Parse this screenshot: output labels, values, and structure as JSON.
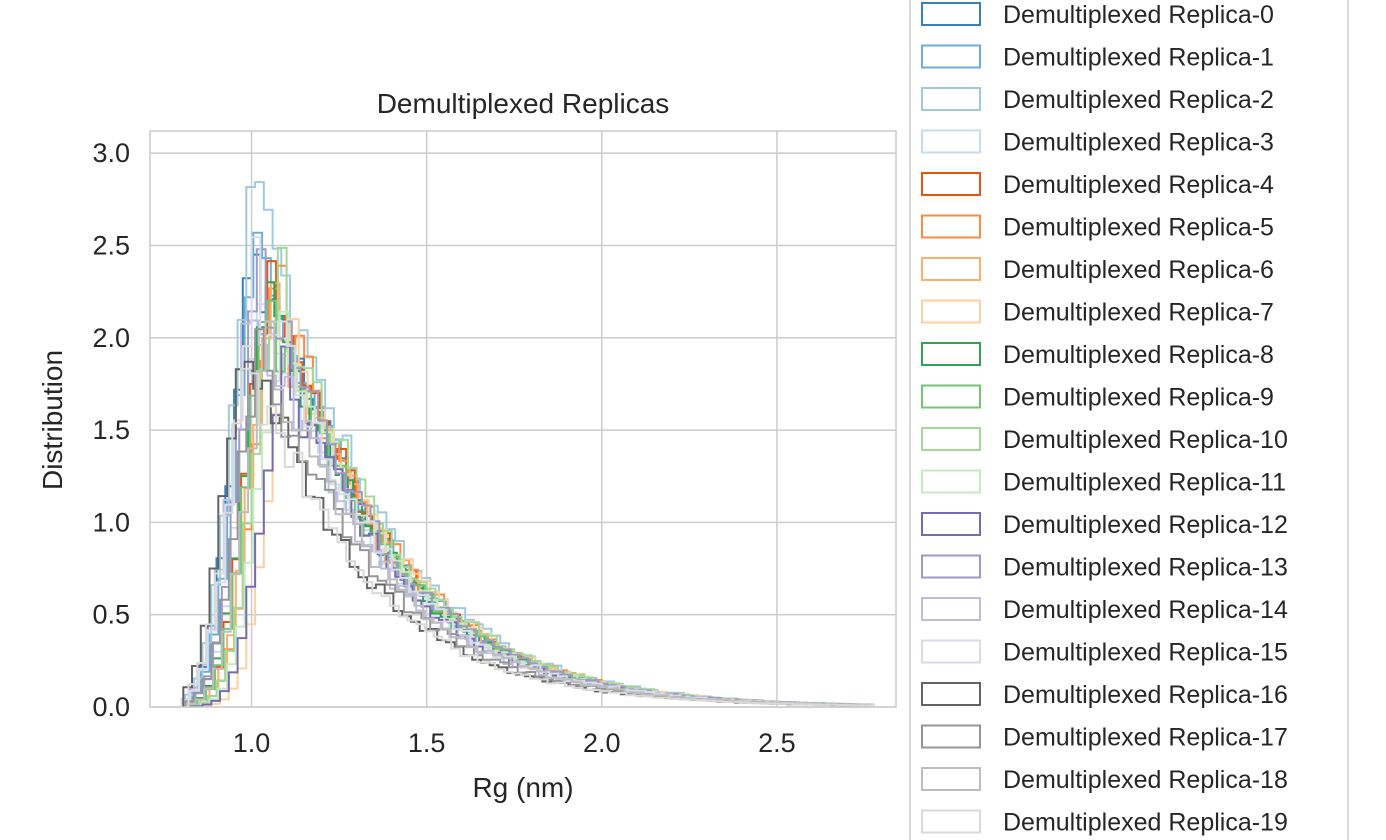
{
  "chart_data": {
    "type": "histogram-step",
    "title": "Demultiplexed Replicas",
    "xlabel": "Rg (nm)",
    "ylabel": "Distribution",
    "xlim": [
      0.71,
      2.84
    ],
    "ylim": [
      0.0,
      3.12
    ],
    "xticks": [
      1.0,
      1.5,
      2.0,
      2.5
    ],
    "xtick_labels": [
      "1.0",
      "1.5",
      "2.0",
      "2.5"
    ],
    "yticks": [
      0.0,
      0.5,
      1.0,
      1.5,
      2.0,
      2.5,
      3.0
    ],
    "ytick_labels": [
      "0.0",
      "0.5",
      "1.0",
      "1.5",
      "2.0",
      "2.5",
      "3.0"
    ],
    "grid": true,
    "legend_position": "outside-right",
    "x_min": 0.8,
    "x_max": 2.75,
    "bin_width": 0.025,
    "series": [
      {
        "name": "Demultiplexed Replica-0",
        "color": "#3182bd",
        "peak_x": 1.03,
        "peak_y": 2.62
      },
      {
        "name": "Demultiplexed Replica-1",
        "color": "#6baed6",
        "peak_x": 1.04,
        "peak_y": 2.6
      },
      {
        "name": "Demultiplexed Replica-2",
        "color": "#9ecae1",
        "peak_x": 1.03,
        "peak_y": 2.96
      },
      {
        "name": "Demultiplexed Replica-3",
        "color": "#c6dbef",
        "peak_x": 1.05,
        "peak_y": 2.2
      },
      {
        "name": "Demultiplexed Replica-4",
        "color": "#e6550d",
        "peak_x": 1.07,
        "peak_y": 2.36
      },
      {
        "name": "Demultiplexed Replica-5",
        "color": "#fd8d3c",
        "peak_x": 1.09,
        "peak_y": 2.33
      },
      {
        "name": "Demultiplexed Replica-6",
        "color": "#fdae6b",
        "peak_x": 1.08,
        "peak_y": 2.22
      },
      {
        "name": "Demultiplexed Replica-7",
        "color": "#fdd0a2",
        "peak_x": 1.13,
        "peak_y": 2.02
      },
      {
        "name": "Demultiplexed Replica-8",
        "color": "#31a354",
        "peak_x": 1.06,
        "peak_y": 2.31
      },
      {
        "name": "Demultiplexed Replica-9",
        "color": "#74c476",
        "peak_x": 1.07,
        "peak_y": 2.25
      },
      {
        "name": "Demultiplexed Replica-10",
        "color": "#a1d99b",
        "peak_x": 1.09,
        "peak_y": 2.38
      },
      {
        "name": "Demultiplexed Replica-11",
        "color": "#c7e9c0",
        "peak_x": 1.1,
        "peak_y": 2.05
      },
      {
        "name": "Demultiplexed Replica-12",
        "color": "#756bb1",
        "peak_x": 1.11,
        "peak_y": 1.88
      },
      {
        "name": "Demultiplexed Replica-13",
        "color": "#9e9ac8",
        "peak_x": 1.05,
        "peak_y": 2.45
      },
      {
        "name": "Demultiplexed Replica-14",
        "color": "#bcbddc",
        "peak_x": 1.02,
        "peak_y": 2.28
      },
      {
        "name": "Demultiplexed Replica-15",
        "color": "#dadaeb",
        "peak_x": 1.03,
        "peak_y": 2.46
      },
      {
        "name": "Demultiplexed Replica-16",
        "color": "#636363",
        "peak_x": 1.0,
        "peak_y": 2.01
      },
      {
        "name": "Demultiplexed Replica-17",
        "color": "#969696",
        "peak_x": 1.04,
        "peak_y": 1.97
      },
      {
        "name": "Demultiplexed Replica-18",
        "color": "#bdbdbd",
        "peak_x": 1.06,
        "peak_y": 2.0
      },
      {
        "name": "Demultiplexed Replica-19",
        "color": "#d9d9d9",
        "peak_x": 1.01,
        "peak_y": 1.92
      }
    ]
  }
}
